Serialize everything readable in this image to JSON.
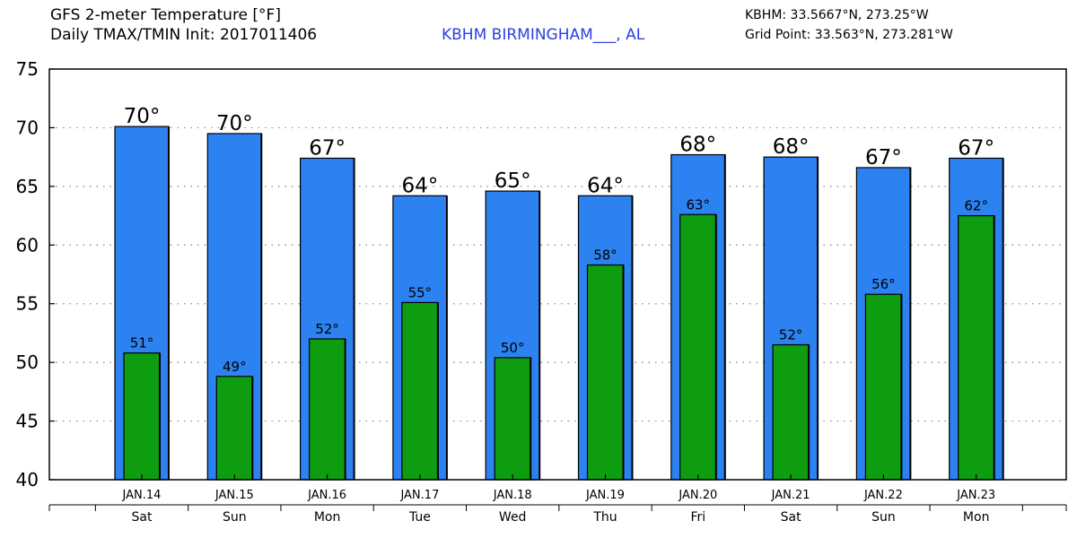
{
  "header": {
    "title_line1": "GFS 2-meter Temperature [°F]",
    "title_line2": "Daily TMAX/TMIN Init: 2017011406",
    "station": "KBHM BIRMINGHAM___, AL",
    "coord_line1": "KBHM: 33.5667°N, 273.25°W",
    "coord_line2": "Grid Point: 33.563°N, 273.281°W"
  },
  "colors": {
    "max_bar": "#2c82f0",
    "min_bar": "#0e9c10",
    "bar_edge": "#000000",
    "grid": "#888888"
  },
  "chart_data": {
    "type": "bar",
    "ylim": [
      40,
      75
    ],
    "yticks": [
      "40",
      "45",
      "50",
      "55",
      "60",
      "65",
      "70",
      "75"
    ],
    "grid": "dotted horizontal",
    "categories": [
      "JAN.14",
      "JAN.15",
      "JAN.16",
      "JAN.17",
      "JAN.18",
      "JAN.19",
      "JAN.20",
      "JAN.21",
      "JAN.22",
      "JAN.23"
    ],
    "days": [
      "Sat",
      "Sun",
      "Mon",
      "Tue",
      "Wed",
      "Thu",
      "Fri",
      "Sat",
      "Sun",
      "Mon"
    ],
    "series": [
      {
        "values": [
          70.1,
          69.5,
          67.4,
          64.2,
          64.6,
          64.2,
          67.7,
          67.5,
          66.6,
          67.4
        ],
        "labels": [
          "70°",
          "70°",
          "67°",
          "64°",
          "65°",
          "64°",
          "68°",
          "68°",
          "67°",
          "67°"
        ]
      },
      {
        "values": [
          50.8,
          48.8,
          52.0,
          55.1,
          50.4,
          58.3,
          62.6,
          51.5,
          55.8,
          62.5
        ],
        "labels": [
          "51°",
          "49°",
          "52°",
          "55°",
          "50°",
          "58°",
          "63°",
          "52°",
          "56°",
          "62°"
        ]
      }
    ]
  }
}
